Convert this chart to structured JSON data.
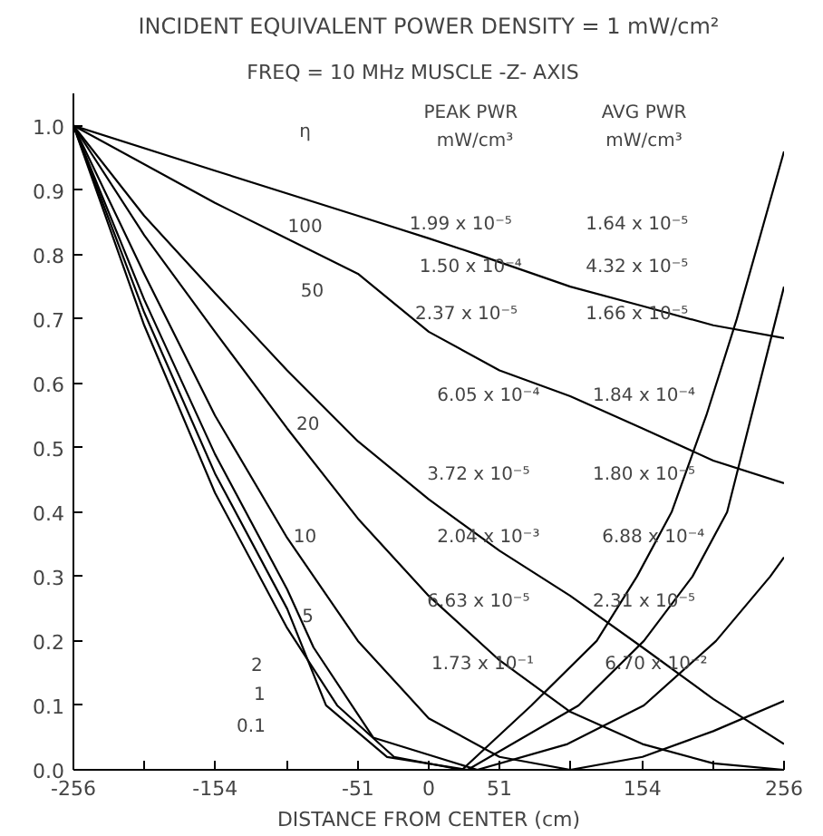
{
  "chart_data": {
    "type": "line",
    "title": "INCIDENT EQUIVALENT POWER DENSITY = 1 mW/cm²",
    "subtitle": "FREQ = 10 MHz      MUSCLE -Z- AXIS",
    "xlabel": "DISTANCE FROM CENTER (cm)",
    "xlim": [
      -256,
      256
    ],
    "ylim": [
      0,
      1.05
    ],
    "xticks": [
      -256,
      {
        "value": -205,
        "label": null
      },
      -154,
      {
        "value": -102,
        "label": null
      },
      -51,
      0,
      51,
      {
        "value": 102,
        "label": null
      },
      154,
      {
        "value": 205,
        "label": null
      },
      256
    ],
    "yticks": [
      {
        "value": 0,
        "label": "0.0"
      },
      0.1,
      0.2,
      0.3,
      0.4,
      0.5,
      0.6,
      0.7,
      0.8,
      0.9,
      {
        "value": 1.0,
        "label": "1.0"
      }
    ],
    "series": [
      {
        "color": "#000000",
        "x": [
          -256,
          -154,
          -51,
          0,
          35,
          102,
          154,
          205,
          256
        ],
        "values": [
          1.0,
          0.93,
          0.86,
          0.825,
          0.8,
          0.75,
          0.72,
          0.69,
          0.67
        ]
      },
      {
        "color": "#000000",
        "x": [
          -256,
          -154,
          -51,
          0,
          51,
          102,
          154,
          205,
          256
        ],
        "values": [
          1.0,
          0.88,
          0.77,
          0.68,
          0.62,
          0.58,
          0.53,
          0.48,
          0.445
        ]
      },
      {
        "color": "#000000",
        "x": [
          -256,
          -205,
          -154,
          -102,
          -51,
          0,
          51,
          102,
          154,
          205,
          256
        ],
        "values": [
          1.0,
          0.86,
          0.74,
          0.62,
          0.51,
          0.42,
          0.34,
          0.27,
          0.19,
          0.11,
          0.04
        ]
      },
      {
        "color": "#000000",
        "x": [
          -256,
          -205,
          -154,
          -102,
          -51,
          0,
          51,
          102,
          154,
          205,
          256
        ],
        "values": [
          1.0,
          0.83,
          0.68,
          0.53,
          0.39,
          0.27,
          0.17,
          0.09,
          0.04,
          0.01,
          0.0
        ]
      },
      {
        "color": "#000000",
        "x": [
          -256,
          -205,
          -154,
          -102,
          -51,
          0,
          51,
          102,
          154,
          205,
          256
        ],
        "values": [
          1.0,
          0.77,
          0.55,
          0.36,
          0.2,
          0.08,
          0.02,
          0.0,
          0.02,
          0.06,
          0.107
        ]
      },
      {
        "color": "#000000",
        "x": [
          -256,
          -205,
          -154,
          -102,
          -83,
          -40,
          35,
          100,
          155,
          207,
          246,
          256
        ],
        "values": [
          1.0,
          0.73,
          0.49,
          0.28,
          0.19,
          0.05,
          0.0,
          0.04,
          0.1,
          0.2,
          0.3,
          0.33
        ]
      },
      {
        "color": "#000000",
        "x": [
          -256,
          -205,
          -154,
          -102,
          -74,
          -30,
          28,
          108,
          155,
          190,
          215,
          256
        ],
        "values": [
          1.0,
          0.71,
          0.46,
          0.25,
          0.1,
          0.02,
          0.0,
          0.1,
          0.2,
          0.3,
          0.4,
          0.75
        ]
      },
      {
        "color": "#000000",
        "x": [
          -256,
          -205,
          -154,
          -102,
          -66,
          -25,
          24,
          74,
          121,
          150,
          175,
          200,
          222,
          256
        ],
        "values": [
          1.0,
          0.69,
          0.43,
          0.22,
          0.1,
          0.02,
          0.0,
          0.1,
          0.2,
          0.3,
          0.4,
          0.55,
          0.7,
          0.96
        ]
      }
    ],
    "annotations": [
      "η",
      "PEAK PWR",
      "mW/cm³",
      "AVG PWR",
      "mW/cm³",
      "100",
      "50",
      "20",
      "10",
      "5",
      "2",
      "1",
      "0.1",
      "1.99 x 10⁻⁵",
      "1.64 x 10⁻⁵",
      "1.50 x 10⁻⁴",
      "4.32 x 10⁻⁵",
      "2.37 x 10⁻⁵",
      "1.66 x 10⁻⁵",
      "6.05 x 10⁻⁴",
      "1.84 x 10⁻⁴",
      "3.72 x 10⁻⁵",
      "1.80 x 10⁻⁵",
      "2.04 x 10⁻³",
      "6.88 x 10⁻⁴",
      "6.63 x 10⁻⁵",
      "2.31 x 10⁻⁵",
      "1.73 x 10⁻¹",
      "6.70 x 10⁻²"
    ]
  }
}
